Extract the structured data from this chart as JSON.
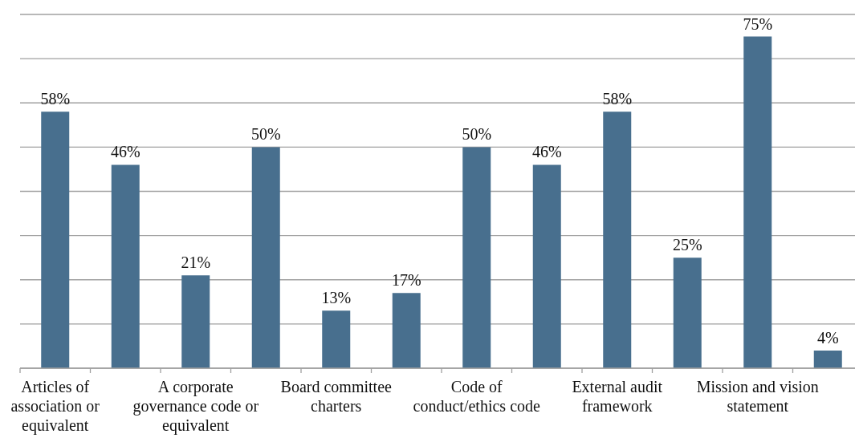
{
  "chart_data": {
    "type": "bar",
    "categories": [
      "Articles of association or equivalent",
      null,
      "A corporate governance code or equivalent",
      null,
      "Board committee charters",
      null,
      "Code of conduct/ethics code",
      null,
      "External audit framework",
      null,
      "Mission and vision statement",
      null
    ],
    "values": [
      58,
      46,
      21,
      50,
      13,
      17,
      50,
      46,
      58,
      25,
      75,
      4
    ],
    "value_labels": [
      "58%",
      "46%",
      "21%",
      "50%",
      "13%",
      "17%",
      "50%",
      "46%",
      "58%",
      "25%",
      "75%",
      "4%"
    ],
    "color": "#486f8e",
    "ylim": [
      0,
      80
    ],
    "yticks": [
      {
        "value": 0,
        "label": null
      },
      {
        "value": 10,
        "label": null
      },
      {
        "value": 20,
        "label": null
      },
      {
        "value": 30,
        "label": null
      },
      {
        "value": 40,
        "label": null
      },
      {
        "value": 50,
        "label": null
      },
      {
        "value": 60,
        "label": null
      },
      {
        "value": 70,
        "label": null
      },
      {
        "value": 80,
        "label": null
      }
    ],
    "grid": "y",
    "tick_labels": "x"
  }
}
